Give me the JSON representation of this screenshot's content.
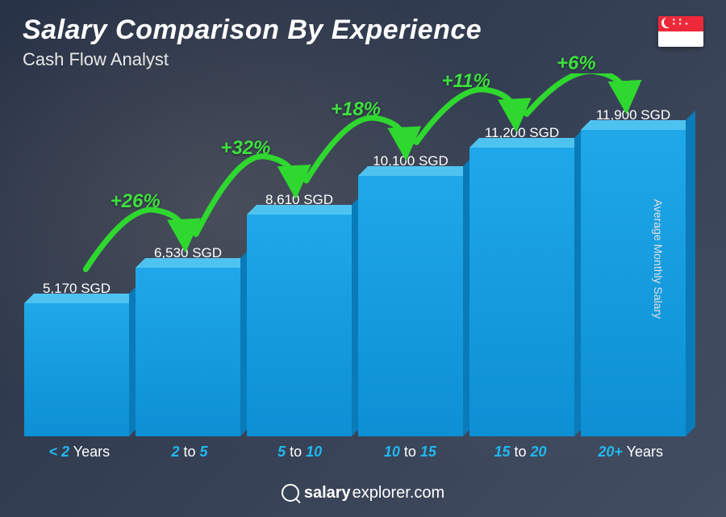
{
  "header": {
    "title": "Salary Comparison By Experience",
    "subtitle": "Cash Flow Analyst"
  },
  "flag": {
    "country": "Singapore",
    "top_color": "#ed2939",
    "bottom_color": "#ffffff"
  },
  "y_axis_label": "Average Monthly Salary",
  "chart": {
    "type": "bar",
    "currency": "SGD",
    "max_value": 11900,
    "value_fontsize": 17,
    "value_color": "#ffffff",
    "bar_colors": {
      "front_top": "#1fa8e8",
      "front_bottom": "#0d8fd4",
      "top_face": "#4fc3f0",
      "side_face": "#0a7bb8"
    },
    "x_label_accent_color": "#1fb8f0",
    "x_label_dim_color": "#ffffff",
    "x_label_fontsize": 18,
    "categories": [
      {
        "label_accent": "< 2",
        "label_dim": " Years",
        "value": 5170,
        "value_label": "5,170 SGD"
      },
      {
        "label_accent": "2",
        "label_dim": " to ",
        "label_accent2": "5",
        "value": 6530,
        "value_label": "6,530 SGD"
      },
      {
        "label_accent": "5",
        "label_dim": " to ",
        "label_accent2": "10",
        "value": 8610,
        "value_label": "8,610 SGD"
      },
      {
        "label_accent": "10",
        "label_dim": " to ",
        "label_accent2": "15",
        "value": 10100,
        "value_label": "10,100 SGD"
      },
      {
        "label_accent": "15",
        "label_dim": " to ",
        "label_accent2": "20",
        "value": 11200,
        "value_label": "11,200 SGD"
      },
      {
        "label_accent": "20+",
        "label_dim": " Years",
        "value": 11900,
        "value_label": "11,900 SGD"
      }
    ],
    "increases": [
      {
        "from": 0,
        "to": 1,
        "pct": "+26%"
      },
      {
        "from": 1,
        "to": 2,
        "pct": "+32%"
      },
      {
        "from": 2,
        "to": 3,
        "pct": "+18%"
      },
      {
        "from": 3,
        "to": 4,
        "pct": "+11%"
      },
      {
        "from": 4,
        "to": 5,
        "pct": "+6%"
      }
    ],
    "increase_color": "#3de03d",
    "increase_fontsize": 24,
    "arrow_stroke": "#2fd82f",
    "arrow_stroke_width": 7
  },
  "footer": {
    "brand_bold": "salary",
    "brand_rest": "explorer.com"
  },
  "background": {
    "base_gradient": "linear-gradient(135deg, #2a3548, #5a6578)"
  }
}
